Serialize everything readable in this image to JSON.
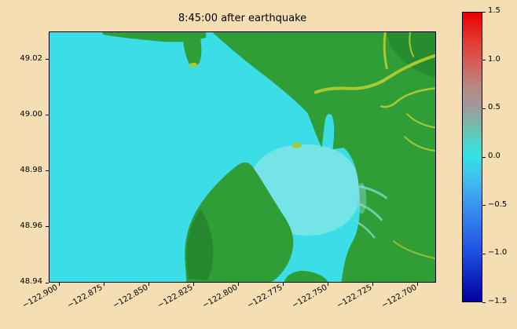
{
  "figure": {
    "background_color": "#f5deb3"
  },
  "palette": {
    "background": "#f5deb3",
    "water": "#3bdde6",
    "inner_bay": "#74e4e6",
    "land": "#2f9e36",
    "land_dark": "#1f7628",
    "river": "#a9c832",
    "marsh": "#7fd8c8",
    "frame": "#000000",
    "text": "#000000"
  },
  "chart_data": {
    "type": "heatmap",
    "title": "8:45:00 after earthquake",
    "xlabel": "",
    "ylabel": "",
    "grid": false,
    "legend": "none",
    "x_axis": {
      "tick_labels": [
        "−122.900",
        "−122.875",
        "−122.850",
        "−122.825",
        "−122.800",
        "−122.775",
        "−122.750",
        "−122.725",
        "−122.700"
      ],
      "tick_values": [
        -122.9,
        -122.875,
        -122.85,
        -122.825,
        -122.8,
        -122.775,
        -122.75,
        -122.725,
        -122.7
      ],
      "lim": [
        -122.9057,
        -122.6899
      ],
      "label_rotation_deg": 30
    },
    "y_axis": {
      "tick_labels": [
        "48.94",
        "48.96",
        "48.98",
        "49.00",
        "49.02"
      ],
      "tick_values": [
        48.94,
        48.96,
        48.98,
        49.0,
        49.02
      ],
      "lim": [
        48.94,
        49.0301
      ]
    },
    "colorbar": {
      "tick_labels": [
        "1.5",
        "1.0",
        "0.5",
        "0.0",
        "−0.5",
        "−1.0",
        "−1.5"
      ],
      "tick_values": [
        1.5,
        1.0,
        0.5,
        0.0,
        -0.5,
        -1.0,
        -1.5
      ],
      "lim": [
        -1.5,
        1.5
      ],
      "gradient_stops": [
        {
          "pos": 0.0,
          "color": "#e80000"
        },
        {
          "pos": 0.1,
          "color": "#e23a33"
        },
        {
          "pos": 0.17,
          "color": "#d55c55"
        },
        {
          "pos": 0.25,
          "color": "#bc8580"
        },
        {
          "pos": 0.333,
          "color": "#9c9c9c"
        },
        {
          "pos": 0.4,
          "color": "#6fc0ab"
        },
        {
          "pos": 0.46,
          "color": "#46d8d2"
        },
        {
          "pos": 0.5,
          "color": "#33e0e6"
        },
        {
          "pos": 0.58,
          "color": "#3fbdf0"
        },
        {
          "pos": 0.667,
          "color": "#3a92f2"
        },
        {
          "pos": 0.833,
          "color": "#1e4ee0"
        },
        {
          "pos": 1.0,
          "color": "#0000a0"
        }
      ]
    }
  }
}
